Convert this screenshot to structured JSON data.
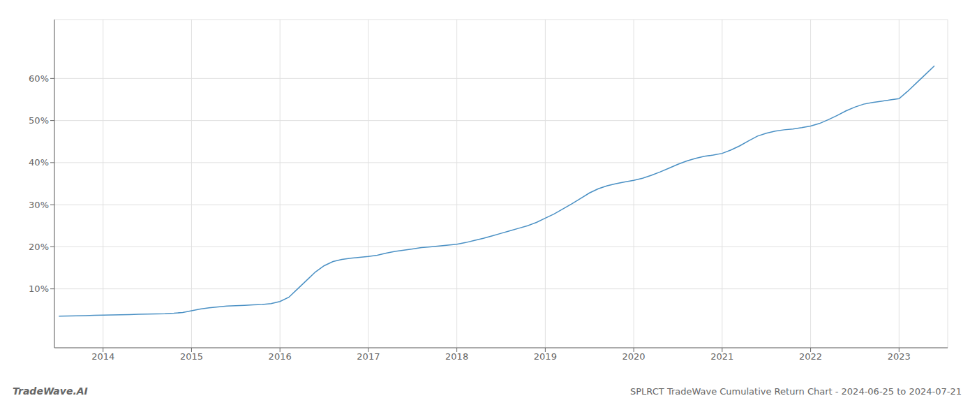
{
  "chart_data": {
    "type": "line",
    "title": "SPLRCT TradeWave Cumulative Return Chart - 2024-06-25 to 2024-07-21",
    "annotations": [
      "TradeWave.AI"
    ],
    "x": [
      2013.5,
      2013.6,
      2013.7,
      2013.8,
      2013.9,
      2014.0,
      2014.1,
      2014.2,
      2014.3,
      2014.4,
      2014.5,
      2014.6,
      2014.7,
      2014.8,
      2014.9,
      2015.0,
      2015.1,
      2015.2,
      2015.3,
      2015.4,
      2015.5,
      2015.6,
      2015.7,
      2015.8,
      2015.9,
      2016.0,
      2016.1,
      2016.2,
      2016.3,
      2016.4,
      2016.5,
      2016.6,
      2016.7,
      2016.8,
      2016.9,
      2017.0,
      2017.1,
      2017.2,
      2017.3,
      2017.4,
      2017.5,
      2017.6,
      2017.7,
      2017.8,
      2017.9,
      2018.0,
      2018.1,
      2018.2,
      2018.3,
      2018.4,
      2018.5,
      2018.6,
      2018.7,
      2018.8,
      2018.9,
      2019.0,
      2019.1,
      2019.2,
      2019.3,
      2019.4,
      2019.5,
      2019.6,
      2019.7,
      2019.8,
      2019.9,
      2020.0,
      2020.1,
      2020.2,
      2020.3,
      2020.4,
      2020.5,
      2020.6,
      2020.7,
      2020.8,
      2020.9,
      2021.0,
      2021.1,
      2021.2,
      2021.3,
      2021.4,
      2021.5,
      2021.6,
      2021.7,
      2021.8,
      2021.9,
      2022.0,
      2022.1,
      2022.2,
      2022.3,
      2022.4,
      2022.5,
      2022.6,
      2022.7,
      2022.8,
      2022.9,
      2023.0,
      2023.1,
      2023.2,
      2023.3,
      2023.4
    ],
    "values": [
      3.5,
      3.55,
      3.6,
      3.65,
      3.7,
      3.75,
      3.8,
      3.85,
      3.9,
      3.95,
      4.0,
      4.05,
      4.1,
      4.2,
      4.4,
      4.8,
      5.2,
      5.5,
      5.7,
      5.9,
      6.0,
      6.1,
      6.2,
      6.3,
      6.5,
      7.0,
      8.0,
      10.0,
      12.0,
      14.0,
      15.5,
      16.5,
      17.0,
      17.3,
      17.5,
      17.7,
      18.0,
      18.5,
      18.9,
      19.2,
      19.5,
      19.8,
      20.0,
      20.2,
      20.4,
      20.6,
      21.0,
      21.5,
      22.0,
      22.6,
      23.2,
      23.8,
      24.4,
      25.0,
      25.8,
      26.8,
      27.8,
      29.0,
      30.2,
      31.5,
      32.8,
      33.8,
      34.5,
      35.0,
      35.4,
      35.8,
      36.3,
      37.0,
      37.8,
      38.7,
      39.6,
      40.4,
      41.0,
      41.5,
      41.8,
      42.2,
      43.0,
      44.0,
      45.2,
      46.3,
      47.0,
      47.5,
      47.8,
      48.0,
      48.3,
      48.7,
      49.3,
      50.2,
      51.2,
      52.3,
      53.2,
      53.9,
      54.3,
      54.6,
      54.9,
      55.2,
      57.0,
      59.0,
      61.0,
      63.0
    ],
    "color": "#4a90c4",
    "xlim": [
      2013.45,
      2023.55
    ],
    "xticks": [
      2014,
      2015,
      2016,
      2017,
      2018,
      2019,
      2020,
      2021,
      2022,
      2023
    ],
    "ylim": [
      -4,
      74
    ],
    "yticks": [
      {
        "value": 10,
        "label": "10%"
      },
      {
        "value": 20,
        "label": "20%"
      },
      {
        "value": 30,
        "label": "30%"
      },
      {
        "value": 40,
        "label": "40%"
      },
      {
        "value": 50,
        "label": "50%"
      },
      {
        "value": 60,
        "label": "60%"
      }
    ],
    "grid": true
  }
}
